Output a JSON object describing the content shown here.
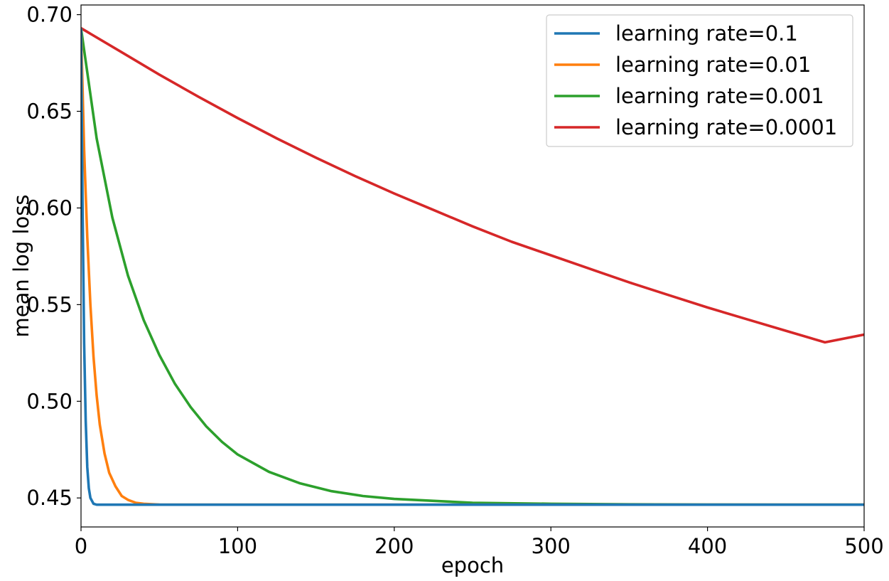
{
  "chart_data": {
    "type": "line",
    "title": "",
    "xlabel": "epoch",
    "ylabel": "mean log loss",
    "xlim": [
      0,
      500
    ],
    "ylim": [
      0.435,
      0.705
    ],
    "xticks": [
      0,
      100,
      200,
      300,
      400,
      500
    ],
    "xtick_labels": [
      "0",
      "100",
      "200",
      "300",
      "400",
      "500"
    ],
    "yticks": [
      0.45,
      0.5,
      0.55,
      0.6,
      0.65,
      0.7
    ],
    "ytick_labels": [
      "0.45",
      "0.50",
      "0.55",
      "0.60",
      "0.65",
      "0.70"
    ],
    "grid": false,
    "legend_position": "top-right",
    "series": [
      {
        "name": "learning rate=0.1",
        "color": "#1f77b4",
        "x": [
          0,
          1,
          2,
          3,
          4,
          5,
          6,
          8,
          10,
          20,
          50,
          100,
          200,
          300,
          400,
          500
        ],
        "y": [
          0.693,
          0.6,
          0.53,
          0.49,
          0.466,
          0.455,
          0.45,
          0.447,
          0.4465,
          0.4465,
          0.4465,
          0.4465,
          0.4465,
          0.4465,
          0.4465,
          0.4465
        ]
      },
      {
        "name": "learning rate=0.01",
        "color": "#ff7f0e",
        "x": [
          0,
          2,
          4,
          6,
          8,
          10,
          12,
          15,
          18,
          22,
          26,
          30,
          35,
          40,
          50,
          60,
          100,
          200,
          300,
          400,
          500
        ],
        "y": [
          0.693,
          0.63,
          0.585,
          0.55,
          0.523,
          0.503,
          0.488,
          0.473,
          0.463,
          0.456,
          0.451,
          0.449,
          0.4475,
          0.447,
          0.4466,
          0.4465,
          0.4465,
          0.4465,
          0.4465,
          0.4465,
          0.4465
        ]
      },
      {
        "name": "learning rate=0.001",
        "color": "#2ca02c",
        "x": [
          0,
          10,
          20,
          30,
          40,
          50,
          60,
          70,
          80,
          90,
          100,
          120,
          140,
          160,
          180,
          200,
          250,
          300,
          350,
          400,
          450,
          500
        ],
        "y": [
          0.693,
          0.636,
          0.595,
          0.565,
          0.542,
          0.524,
          0.509,
          0.497,
          0.487,
          0.479,
          0.4725,
          0.4635,
          0.4575,
          0.4535,
          0.451,
          0.4495,
          0.4475,
          0.447,
          0.4467,
          0.4466,
          0.4465,
          0.4465
        ]
      },
      {
        "name": "learning rate=0.0001",
        "color": "#d62728",
        "x": [
          0,
          25,
          50,
          75,
          100,
          125,
          150,
          175,
          200,
          225,
          250,
          275,
          300,
          325,
          350,
          375,
          400,
          425,
          450,
          475,
          500
        ],
        "y": [
          0.693,
          0.681,
          0.669,
          0.6575,
          0.6465,
          0.636,
          0.626,
          0.6165,
          0.6075,
          0.599,
          0.5905,
          0.5825,
          0.5755,
          0.5685,
          0.5615,
          0.555,
          0.5485,
          0.5425,
          0.5365,
          0.5305,
          0.5345
        ]
      }
    ]
  }
}
